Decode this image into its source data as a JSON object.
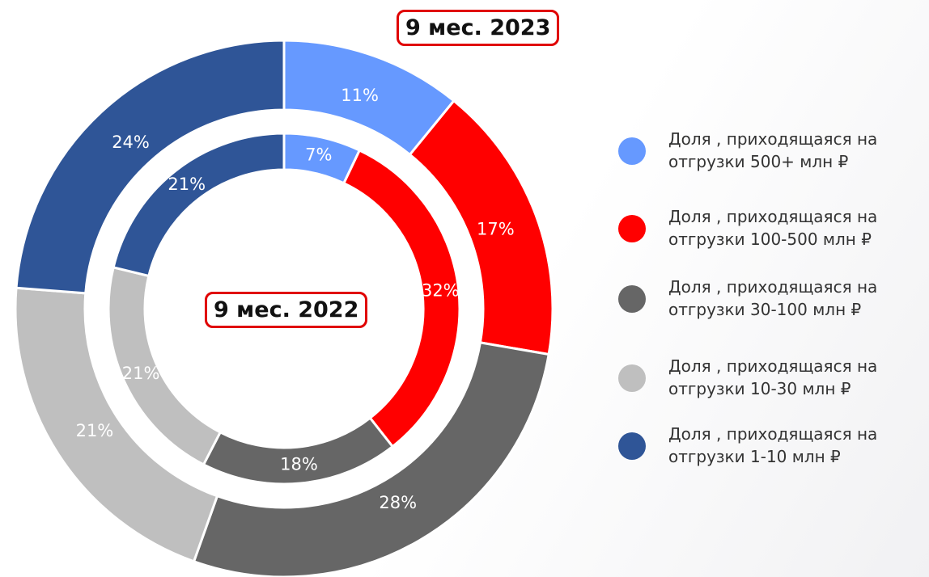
{
  "chart_data": {
    "type": "donut",
    "categories": [
      "Доля , приходящаяся на отгрузки 500+ млн ₽",
      "Доля , приходящаяся на отгрузки 100-500 млн ₽",
      "Доля , приходящаяся на отгрузки 30-100 млн ₽",
      "Доля , приходящаяся на отгрузки 10-30 млн ₽",
      "Доля , приходящаяся на отгрузки 1-10 млн ₽"
    ],
    "colors": [
      "#6699ff",
      "#ff0000",
      "#666666",
      "#bfbfbf",
      "#2f5597"
    ],
    "series": [
      {
        "name": "9 мес. 2023",
        "values": [
          11,
          17,
          28,
          21,
          24
        ],
        "value_labels": [
          "11%",
          "17%",
          "28%",
          "21%",
          "24%"
        ]
      },
      {
        "name": "9 мес. 2022",
        "values": [
          7,
          32,
          18,
          21,
          21
        ],
        "value_labels": [
          "7%",
          "32%",
          "18%",
          "21%",
          "21%"
        ]
      }
    ]
  }
}
